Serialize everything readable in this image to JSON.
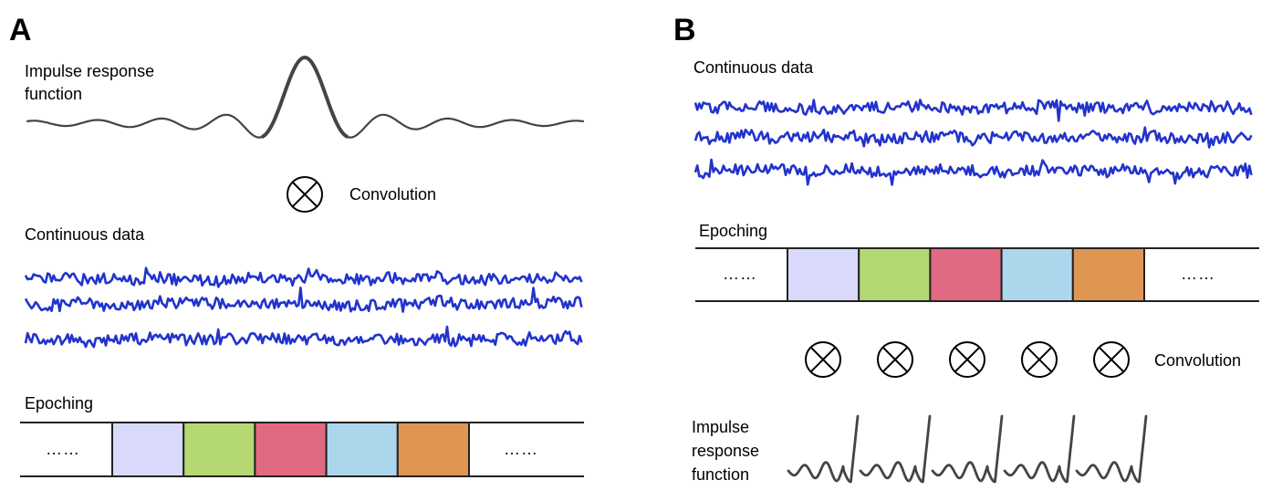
{
  "panels": [
    {
      "letter": "A",
      "impulse_label": [
        "Impulse response",
        "function"
      ],
      "operator_label": "Convolution",
      "continuous_label": "Continuous data",
      "epoch_label": "Epoching",
      "epoch_ellipsis_left": "……",
      "epoch_ellipsis_right": "……",
      "epoch_colors": [
        "#d9d9fb",
        "#b5d972",
        "#e26982",
        "#acd6ec",
        "#de9652"
      ]
    },
    {
      "letter": "B",
      "continuous_label": "Continuous data",
      "epoch_label": "Epoching",
      "epoch_ellipsis_left": "……",
      "epoch_ellipsis_right": "……",
      "epoch_colors": [
        "#d9d9fb",
        "#b5d972",
        "#e26982",
        "#acd6ec",
        "#de9652"
      ],
      "operator_label": "Convolution",
      "operator_count": 5,
      "impulse_label": [
        "Impulse",
        "response",
        "function"
      ],
      "impulse_count": 5
    }
  ],
  "colors": {
    "signal": "#2233cc",
    "kernel": "#444444",
    "epoch_border": "#222222"
  },
  "icons": {
    "operator": "circled-times-icon",
    "impulse": "impulse-response-waveform",
    "signal": "noisy-signal-trace"
  }
}
